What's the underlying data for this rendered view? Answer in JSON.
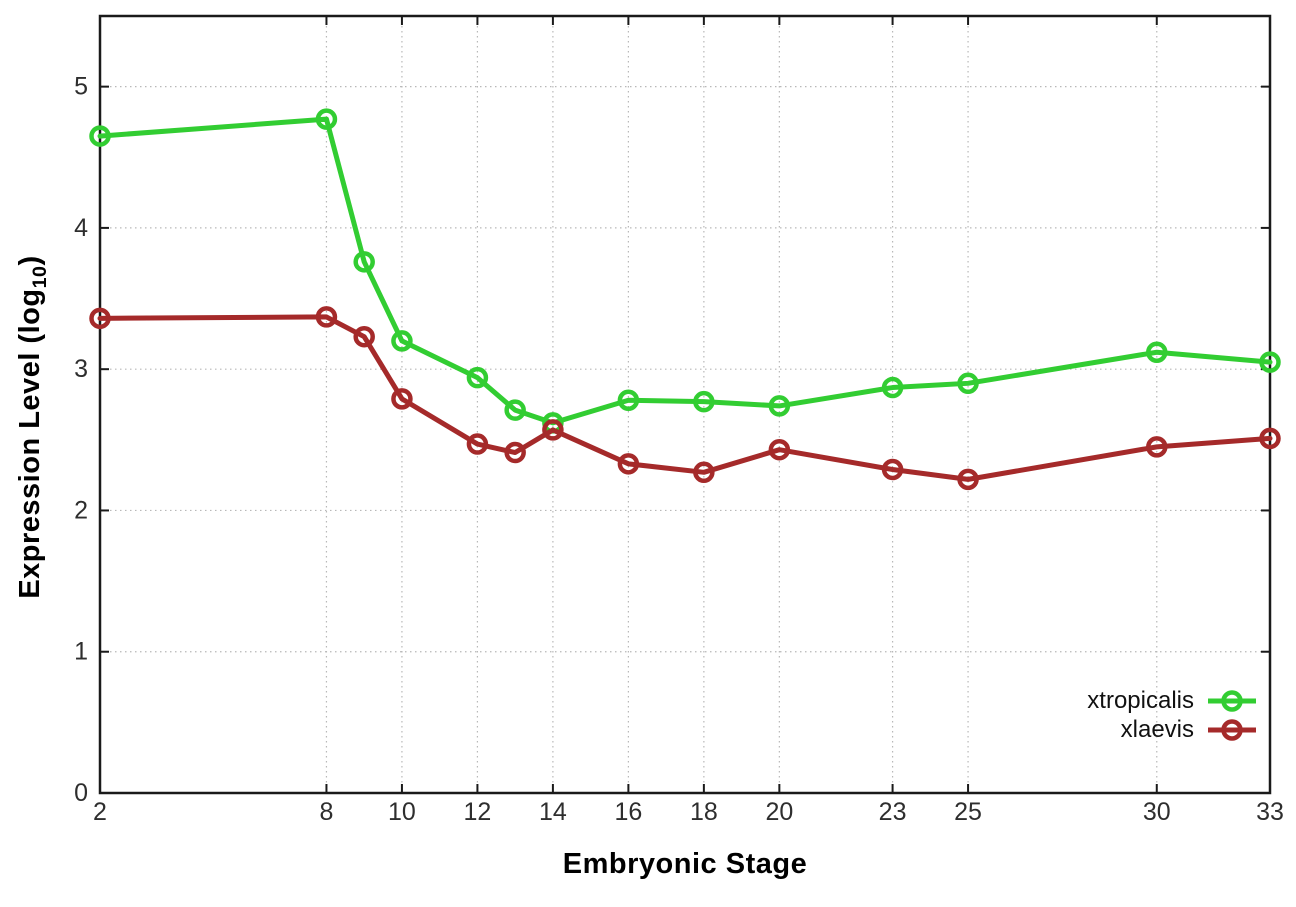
{
  "chart_data": {
    "type": "line",
    "title": "",
    "xlabel": "Embryonic Stage",
    "ylabel": {
      "pre": "Expression Level (log",
      "sub": "10",
      "post": ")"
    },
    "xlim": [
      2,
      33
    ],
    "ylim": [
      0,
      5.5
    ],
    "grid": true,
    "legend_position": "inside-bottom-right",
    "x_tick_values": [
      2,
      8,
      10,
      12,
      14,
      16,
      18,
      20,
      23,
      25,
      30,
      33
    ],
    "x_tick_labels": [
      "2",
      "8",
      "10",
      "12",
      "14",
      "16",
      "18",
      "20",
      "23",
      "25",
      "30",
      "33"
    ],
    "y_tick_values": [
      0,
      1,
      2,
      3,
      4,
      5
    ],
    "y_tick_labels": [
      "0",
      "1",
      "2",
      "3",
      "4",
      "5"
    ],
    "x": [
      2,
      8,
      9,
      10,
      12,
      13,
      14,
      16,
      18,
      20,
      23,
      25,
      30,
      33
    ],
    "series": [
      {
        "name": "xtropicalis",
        "color": "#32CD32",
        "values": [
          4.65,
          4.77,
          3.76,
          3.2,
          2.94,
          2.71,
          2.62,
          2.78,
          2.77,
          2.74,
          2.87,
          2.9,
          3.12,
          3.05
        ]
      },
      {
        "name": "xlaevis",
        "color": "#A52A2A",
        "values": [
          3.36,
          3.37,
          3.23,
          2.79,
          2.47,
          2.41,
          2.57,
          2.33,
          2.27,
          2.43,
          2.29,
          2.22,
          2.45,
          2.51
        ]
      }
    ],
    "style": {
      "border_color": "#1a1a1a",
      "grid_color": "#b8b8b8",
      "tick_label_color": "#2e2e2e",
      "background": "#ffffff"
    }
  }
}
